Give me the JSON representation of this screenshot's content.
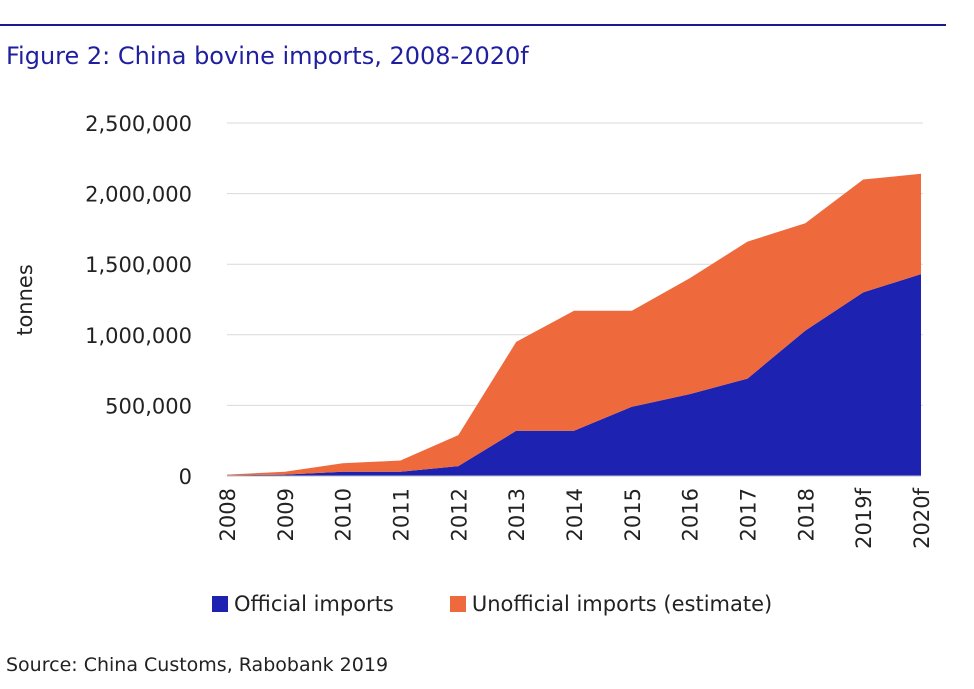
{
  "header": {
    "title": "Figure 2: China bovine imports, 2008-2020f"
  },
  "source": "Source: China Customs, Rabobank 2019",
  "colors": {
    "official": "#1e22b0",
    "unofficial": "#ee6a3c",
    "title": "#1f1fa0",
    "grid": "#d9d9d9"
  },
  "chart_data": {
    "type": "area",
    "stacked": true,
    "title": "Figure 2: China bovine imports, 2008-2020f",
    "xlabel": "",
    "ylabel": "tonnes",
    "ylim": [
      0,
      2500000
    ],
    "yticks": [
      0,
      500000,
      1000000,
      1500000,
      2000000,
      2500000
    ],
    "ytick_labels": [
      "0",
      "500,000",
      "1,000,000",
      "1,500,000",
      "2,000,000",
      "2,500,000"
    ],
    "categories": [
      "2008",
      "2009",
      "2010",
      "2011",
      "2012",
      "2013",
      "2014",
      "2015",
      "2016",
      "2017",
      "2018",
      "2019f",
      "2020f"
    ],
    "grid": true,
    "legend": "bottom",
    "series": [
      {
        "name": "Official imports",
        "values": [
          5000,
          10000,
          30000,
          30000,
          70000,
          320000,
          320000,
          490000,
          580000,
          690000,
          1030000,
          1300000,
          1430000
        ]
      },
      {
        "name": "Unofficial imports (estimate)",
        "values": [
          5000,
          20000,
          60000,
          80000,
          220000,
          630000,
          850000,
          680000,
          820000,
          970000,
          760000,
          800000,
          710000
        ]
      }
    ]
  }
}
